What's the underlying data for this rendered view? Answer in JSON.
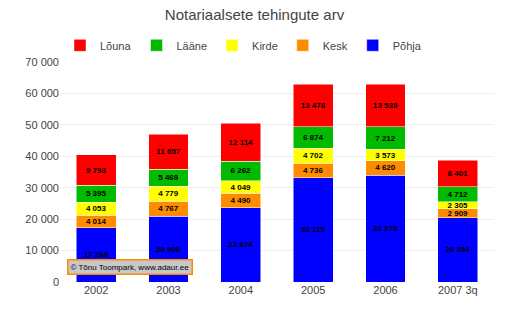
{
  "chart_data": {
    "type": "bar",
    "title": "Notariaalsete tehingute arv",
    "categories": [
      "2002",
      "2003",
      "2004",
      "2005",
      "2006",
      "2007 3q"
    ],
    "series": [
      {
        "name": "Põhja",
        "color": "#0000FF",
        "values": [
          17268,
          20900,
          23674,
          33115,
          33978,
          20394
        ],
        "value_labels": [
          "17 268",
          "20 900",
          "23 674",
          "33 115",
          "33 978",
          "20 394"
        ]
      },
      {
        "name": "Kesk",
        "color": "#FF8C00",
        "values": [
          4014,
          4767,
          4490,
          4736,
          4620,
          2909
        ],
        "value_labels": [
          "4 014",
          "4 767",
          "4 490",
          "4 736",
          "4 620",
          "2 909"
        ]
      },
      {
        "name": "Kirde",
        "color": "#FFFF00",
        "values": [
          4053,
          4779,
          4049,
          4702,
          3573,
          2305
        ],
        "value_labels": [
          "4 053",
          "4 779",
          "4 049",
          "4 702",
          "3 573",
          "2 305"
        ]
      },
      {
        "name": "Lääne",
        "color": "#00BB00",
        "values": [
          5395,
          5469,
          6262,
          6874,
          7212,
          4712
        ],
        "value_labels": [
          "5 395",
          "5 469",
          "6 262",
          "6 874",
          "7 212",
          "4 712"
        ]
      },
      {
        "name": "Lõuna",
        "color": "#FF0000",
        "values": [
          9793,
          11057,
          12114,
          13478,
          13539,
          8401
        ],
        "value_labels": [
          "9 793",
          "11 057",
          "12 114",
          "13 478",
          "13 539",
          "8 401"
        ]
      }
    ],
    "stacked": true,
    "data_labels": true,
    "ylim": [
      0,
      70000
    ],
    "yticks": [
      0,
      {
        "value": 10000,
        "label": "10 000"
      },
      {
        "value": 20000,
        "label": "20 000"
      },
      {
        "value": 30000,
        "label": "30 000"
      },
      {
        "value": 40000,
        "label": "40 000"
      },
      {
        "value": 50000,
        "label": "50 000"
      },
      {
        "value": 60000,
        "label": "60 000"
      },
      {
        "value": 70000,
        "label": "70 000"
      }
    ],
    "grid": true,
    "legend": "upper left",
    "annotations": [
      "© Tõnu Toompark, www.adaur.ee"
    ]
  }
}
